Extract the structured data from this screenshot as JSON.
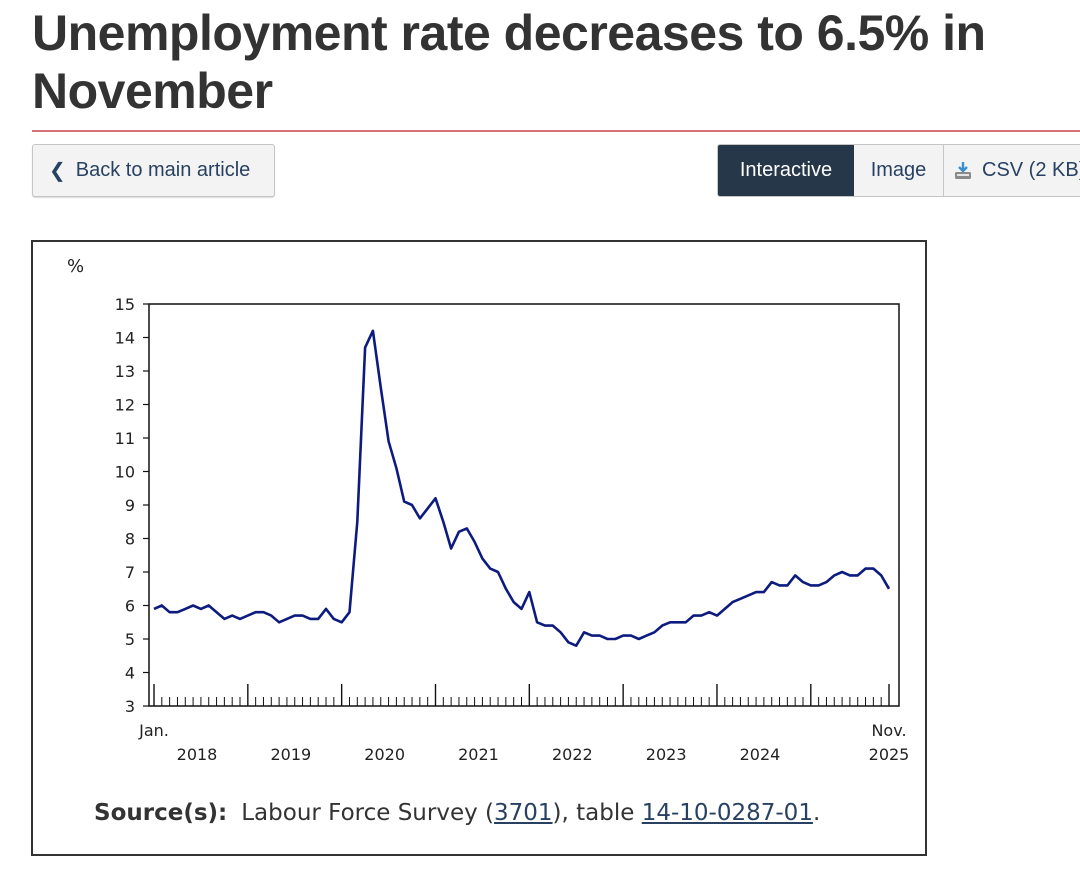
{
  "header": {
    "title": "Unemployment rate decreases to 6.5% in November"
  },
  "nav": {
    "back_label": "Back to main article",
    "tabs": [
      "Interactive",
      "Image",
      "CSV (2 KB)"
    ]
  },
  "source": {
    "label": "Source(s):",
    "prefix": "Labour Force Survey (",
    "survey_link": "3701",
    "middle": "), table ",
    "table_link": "14-10-0287-01",
    "suffix": "."
  },
  "colors": {
    "line": "#0d1b7f",
    "accent_rule": "#d96f7a",
    "active_tab": "#26374a",
    "link": "#284162"
  },
  "chart_data": {
    "type": "line",
    "ylabel": "%",
    "ylim": [
      3,
      15
    ],
    "yticks": [
      3,
      4,
      5,
      6,
      7,
      8,
      9,
      10,
      11,
      12,
      13,
      14,
      15
    ],
    "x_start_label": "Jan.",
    "x_end_label": "Nov.",
    "x_year_labels": [
      "2018",
      "2019",
      "2020",
      "2021",
      "2022",
      "2023",
      "2024",
      "2025"
    ],
    "x_range": [
      "2018-01",
      "2025-11"
    ],
    "grid": false,
    "series": [
      {
        "values": [
          5.9,
          6.0,
          5.8,
          5.8,
          5.9,
          6.0,
          5.9,
          6.0,
          5.8,
          5.6,
          5.7,
          5.6,
          5.7,
          5.8,
          5.8,
          5.7,
          5.5,
          5.6,
          5.7,
          5.7,
          5.6,
          5.6,
          5.9,
          5.6,
          5.5,
          5.8,
          8.5,
          13.7,
          14.2,
          12.5,
          10.9,
          10.1,
          9.1,
          9.0,
          8.6,
          8.9,
          9.2,
          8.5,
          7.7,
          8.2,
          8.3,
          7.9,
          7.4,
          7.1,
          7.0,
          6.5,
          6.1,
          5.9,
          6.4,
          5.5,
          5.4,
          5.4,
          5.2,
          4.9,
          4.8,
          5.2,
          5.1,
          5.1,
          5.0,
          5.0,
          5.1,
          5.1,
          5.0,
          5.1,
          5.2,
          5.4,
          5.5,
          5.5,
          5.5,
          5.7,
          5.7,
          5.8,
          5.7,
          5.9,
          6.1,
          6.2,
          6.3,
          6.4,
          6.4,
          6.7,
          6.6,
          6.6,
          6.9,
          6.7,
          6.6,
          6.6,
          6.7,
          6.9,
          7.0,
          6.9,
          6.9,
          7.1,
          7.1,
          6.9,
          6.5
        ]
      }
    ]
  }
}
